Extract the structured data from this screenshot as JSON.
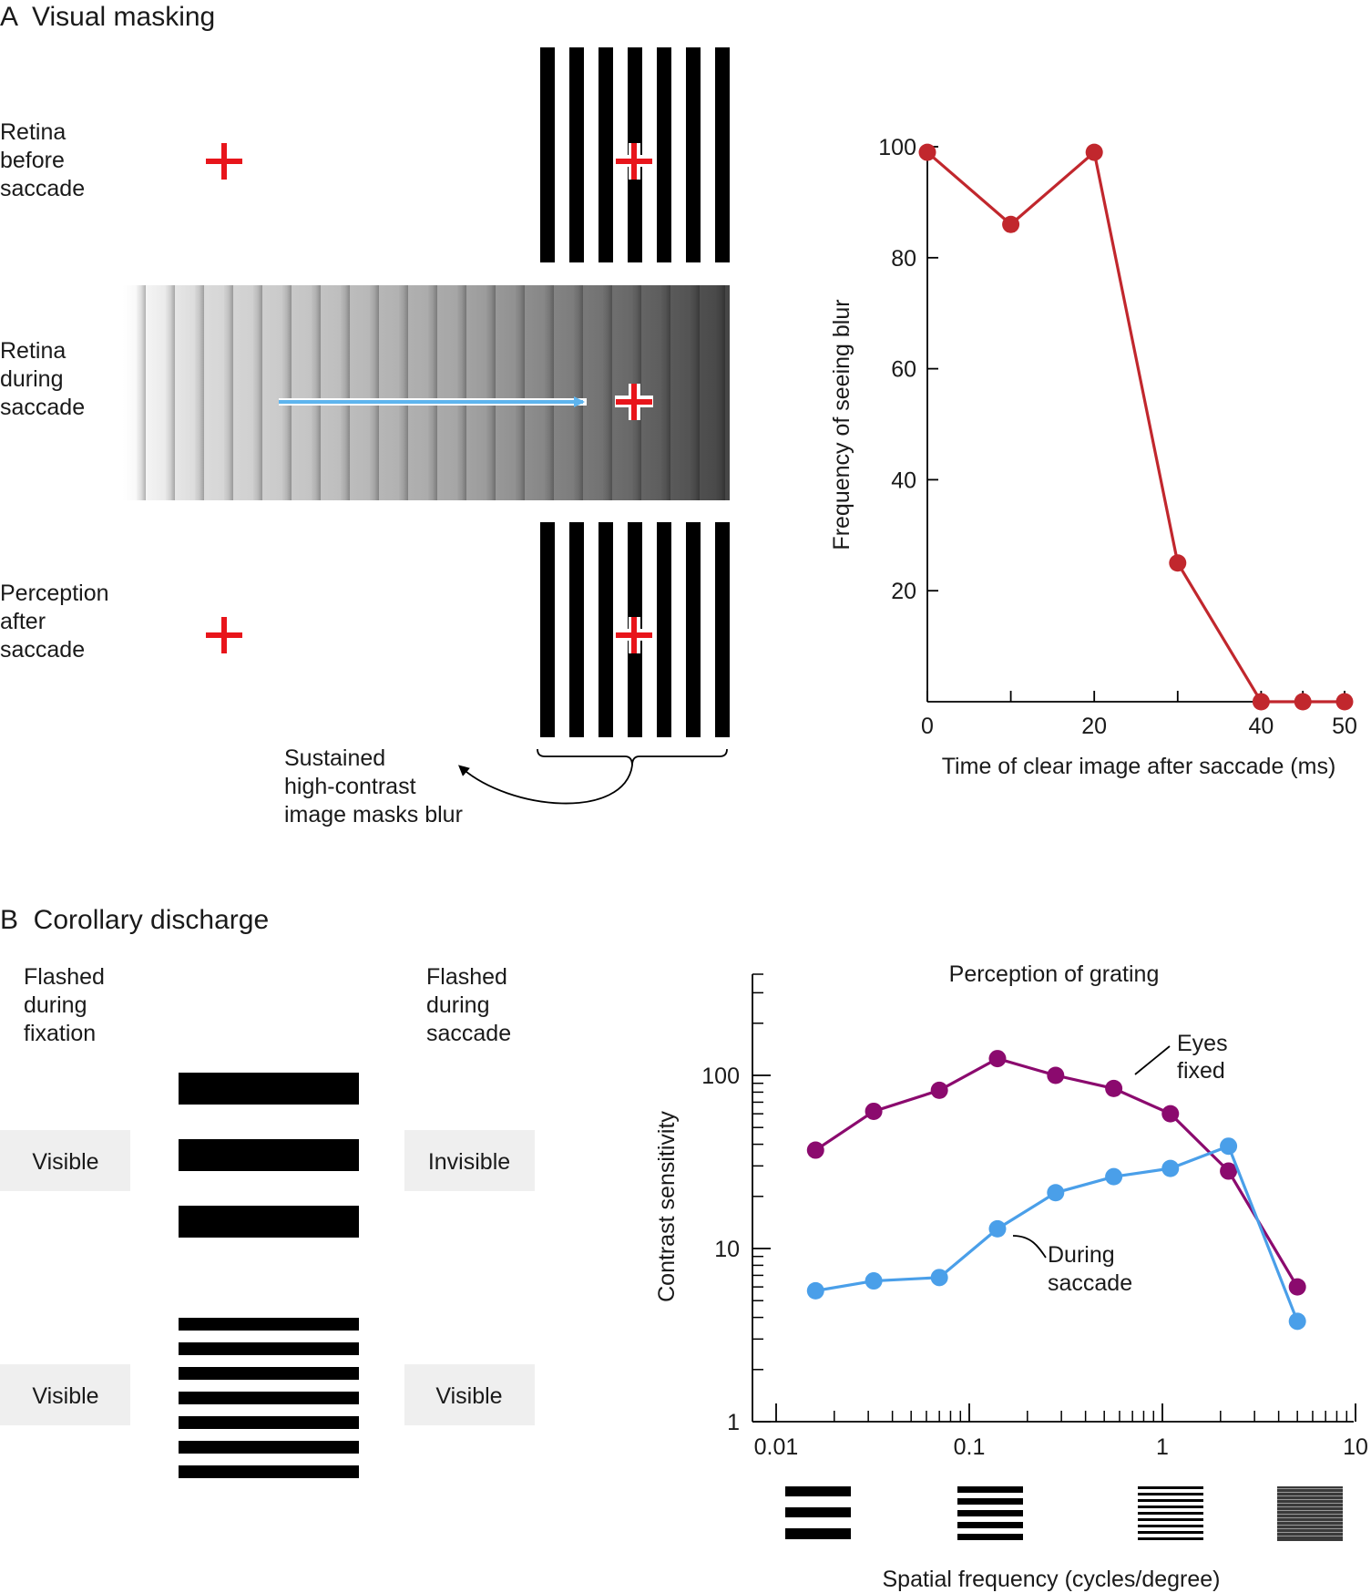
{
  "panel_a": {
    "title": "A  Visual masking",
    "rows": [
      {
        "label": [
          "Retina",
          "before",
          "saccade"
        ]
      },
      {
        "label": [
          "Retina",
          "during",
          "saccade"
        ]
      },
      {
        "label": [
          "Perception",
          "after",
          "saccade"
        ]
      }
    ],
    "annotation": [
      "Sustained",
      "high-contrast",
      "image masks blur"
    ],
    "colors": {
      "cross": "#e8151b",
      "arrow": "#5eb4ee",
      "bars": "#000000"
    }
  },
  "panel_b": {
    "title": "B  Corollary discharge",
    "col_left": [
      "Flashed",
      "during",
      "fixation"
    ],
    "col_right": [
      "Flashed",
      "during",
      "saccade"
    ],
    "coarse_row": {
      "left": "Visible",
      "right": "Invisible"
    },
    "fine_row": {
      "left": "Visible",
      "right": "Visible"
    },
    "colors": {
      "badge_bg": "#efefef"
    }
  },
  "chart_data": [
    {
      "type": "line",
      "title": "",
      "xlabel": "Time of clear image after saccade (ms)",
      "ylabel": "Frequency of seeing blur",
      "xlim": [
        0,
        50
      ],
      "ylim": [
        0,
        100
      ],
      "xticks": [
        "0",
        "20",
        "40",
        "50"
      ],
      "yticks": [
        "100",
        "80",
        "60",
        "40",
        "20"
      ],
      "grid": false,
      "series": [
        {
          "color": "#c1272d",
          "x": [
            0,
            10,
            20,
            30,
            40,
            45,
            50
          ],
          "y": [
            99,
            86,
            99,
            25,
            0,
            0,
            0
          ]
        }
      ]
    },
    {
      "type": "line",
      "title": "Perception of grating",
      "xlabel": "Spatial frequency (cycles/degree)",
      "ylabel": "Contrast sensitivity",
      "x_scale": "log",
      "y_scale": "log",
      "xlim": [
        0.01,
        10
      ],
      "ylim": [
        1,
        300
      ],
      "xticks": [
        "0.01",
        "0.1",
        "1",
        "10"
      ],
      "yticks": [
        "100",
        "10",
        "1"
      ],
      "grid": false,
      "series": [
        {
          "name": "Eyes fixed",
          "color": "#8b0a6e",
          "x": [
            0.016,
            0.032,
            0.07,
            0.14,
            0.28,
            0.56,
            1.1,
            2.2,
            5
          ],
          "y": [
            37,
            62,
            82,
            125,
            100,
            84,
            60,
            28,
            6
          ]
        },
        {
          "name": "During saccade",
          "color": "#4a9fe9",
          "x": [
            0.016,
            0.032,
            0.07,
            0.14,
            0.28,
            0.56,
            1.1,
            2.2,
            5
          ],
          "y": [
            5.7,
            6.5,
            6.8,
            13,
            21,
            26,
            29,
            39,
            3.8
          ]
        }
      ]
    }
  ]
}
